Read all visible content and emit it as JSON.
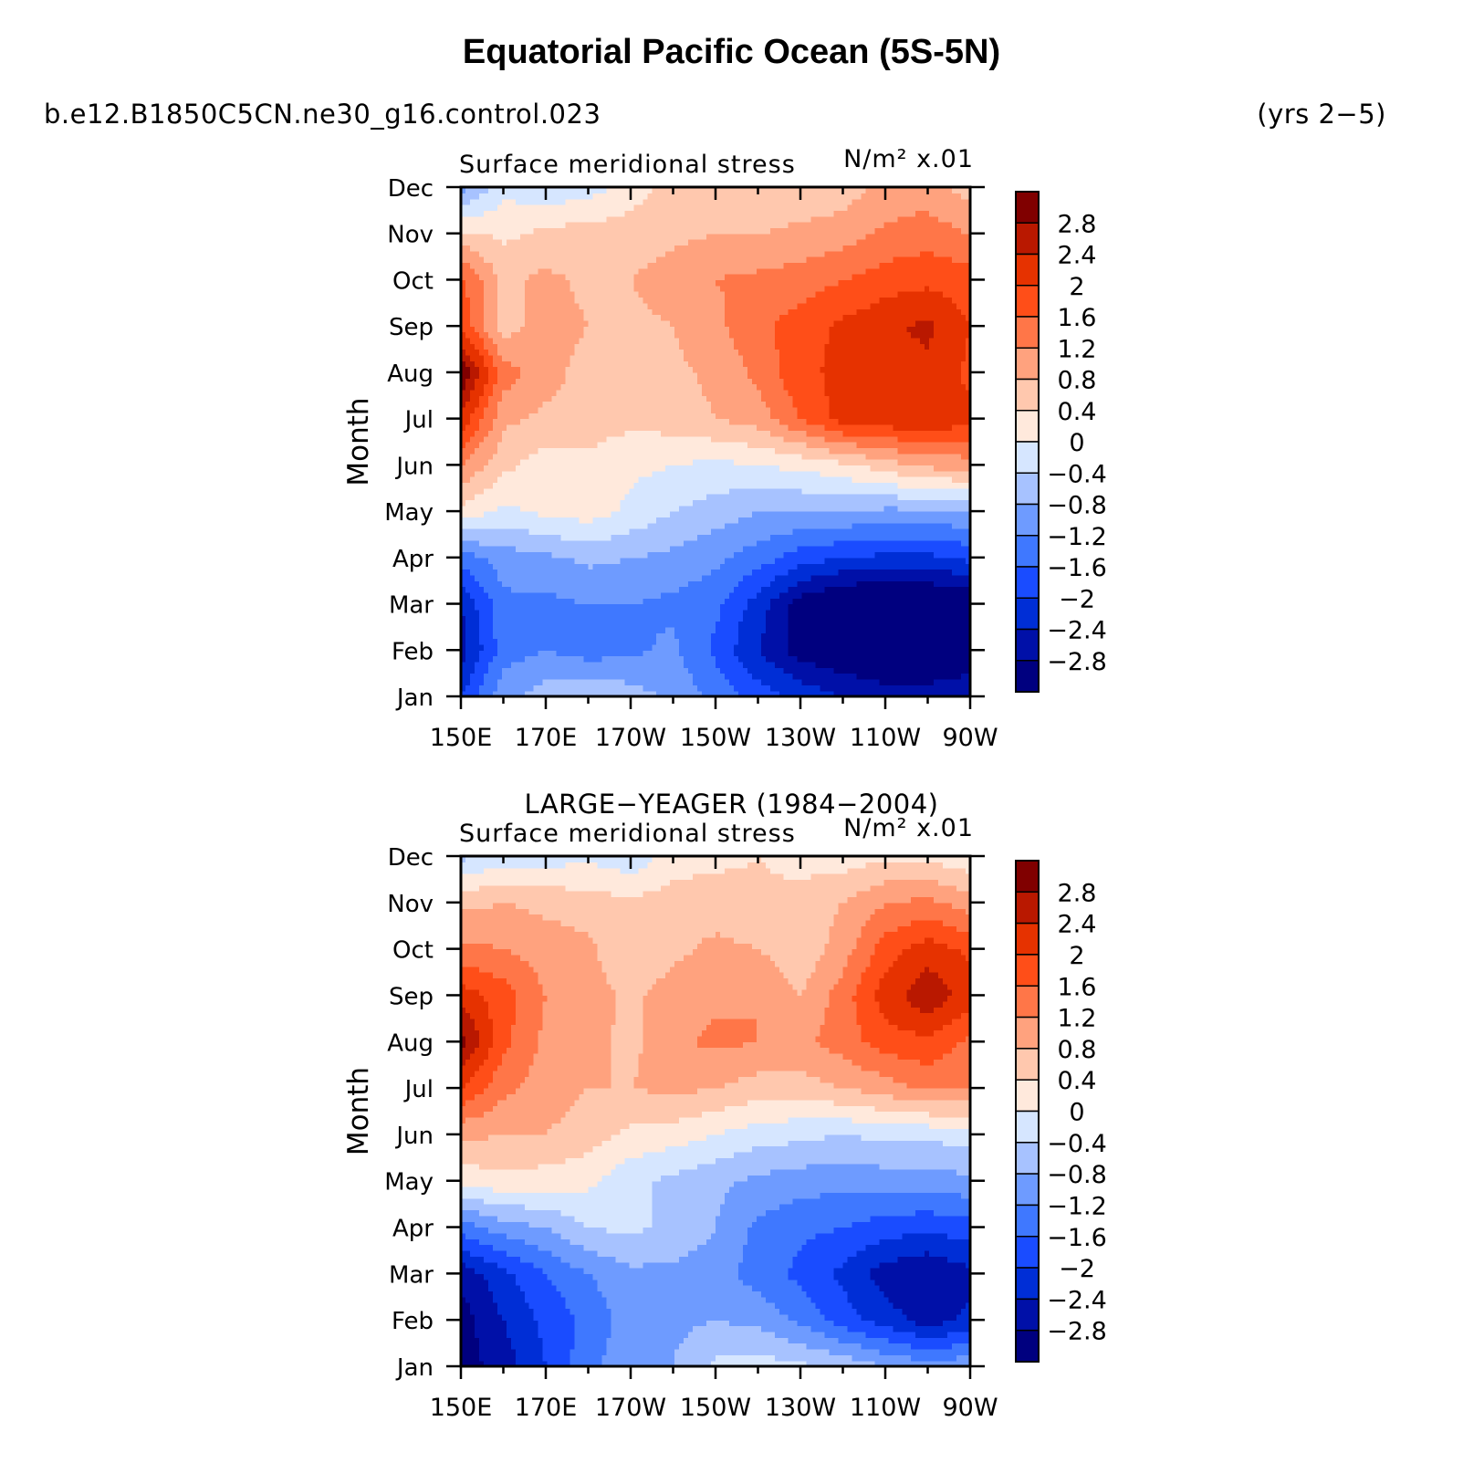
{
  "title": "Equatorial Pacific Ocean (5S-5N)",
  "case_name": "b.e12.B1850C5CN.ne30_g16.control.023",
  "years": "(yrs 2−5)",
  "obs_title": "LARGE−YEAGER (1984−2004)",
  "colors": [
    "#00007f",
    "#0010a8",
    "#002ed6",
    "#1a4cff",
    "#3f78ff",
    "#6e9bff",
    "#a7c2ff",
    "#d6e6ff",
    "#ffe9dc",
    "#ffc8ae",
    "#ffa27e",
    "#ff7648",
    "#ff4e18",
    "#e63200",
    "#b91800",
    "#800000"
  ],
  "chart_data": [
    {
      "type": "heatmap",
      "left_title": "Surface meridional stress",
      "units": "N/m² x.01",
      "ylabel": "Month",
      "x": [
        150,
        160,
        170,
        180,
        190,
        200,
        210,
        220,
        230,
        240,
        250,
        260,
        270
      ],
      "x_ticks": [
        150,
        170,
        190,
        210,
        230,
        250,
        270
      ],
      "x_tick_labels": [
        "150E",
        "170E",
        "170W",
        "150W",
        "130W",
        "110W",
        "90W"
      ],
      "y_tick_labels": [
        "Jan",
        "Feb",
        "Mar",
        "Apr",
        "May",
        "Jun",
        "Jul",
        "Aug",
        "Sep",
        "Oct",
        "Nov",
        "Dec"
      ],
      "xlim": [
        150,
        270
      ],
      "contour_levels": [
        -2.8,
        -2.4,
        -2,
        -1.6,
        -1.2,
        -0.8,
        -0.4,
        0,
        0.4,
        0.8,
        1.2,
        1.6,
        2,
        2.4,
        2.8
      ],
      "colorbar_labels": [
        "2.8",
        "2.4",
        "2",
        "1.6",
        "1.2",
        "0.8",
        "0.4",
        "0",
        "−0.4",
        "−0.8",
        "−1.2",
        "−1.6",
        "−2",
        "−2.4",
        "−2.8"
      ],
      "z": [
        [
          -2.0,
          -0.9,
          -0.6,
          -0.4,
          -0.6,
          -0.9,
          -1.3,
          -1.8,
          -2.1,
          -2.4,
          -2.6,
          -2.6,
          -2.5
        ],
        [
          -2.6,
          -1.4,
          -1.2,
          -1.4,
          -1.3,
          -1.1,
          -1.7,
          -2.4,
          -3.0,
          -3.2,
          -3.3,
          -3.3,
          -3.1
        ],
        [
          -2.4,
          -1.3,
          -1.3,
          -1.2,
          -1.2,
          -1.3,
          -1.5,
          -2.2,
          -3.0,
          -3.4,
          -3.4,
          -3.4,
          -3.2
        ],
        [
          -1.4,
          -1.0,
          -0.9,
          -0.7,
          -0.8,
          -0.9,
          -1.1,
          -1.4,
          -1.8,
          -2.0,
          -2.1,
          -2.1,
          -1.9
        ],
        [
          0.3,
          -0.1,
          0.1,
          0.2,
          -0.1,
          -0.4,
          -0.6,
          -0.8,
          -0.8,
          -0.8,
          -0.9,
          -0.9,
          -0.8
        ],
        [
          1.2,
          0.5,
          0.2,
          0.3,
          0.1,
          0.0,
          -0.1,
          0.0,
          0.1,
          0.3,
          0.6,
          0.9,
          1.0
        ],
        [
          2.3,
          0.9,
          0.7,
          0.6,
          0.5,
          0.6,
          0.8,
          1.0,
          1.6,
          2.2,
          2.3,
          2.4,
          2.1
        ],
        [
          3.2,
          1.4,
          1.0,
          0.6,
          0.5,
          0.7,
          0.9,
          1.3,
          1.9,
          2.1,
          2.2,
          2.3,
          1.9
        ],
        [
          1.9,
          0.6,
          1.0,
          0.8,
          0.7,
          0.8,
          1.1,
          1.5,
          1.8,
          2.1,
          2.3,
          2.5,
          2.0
        ],
        [
          1.7,
          0.7,
          0.9,
          0.7,
          0.8,
          1.0,
          1.2,
          1.3,
          1.4,
          1.6,
          1.8,
          1.9,
          1.8
        ],
        [
          0.5,
          0.3,
          0.5,
          0.6,
          0.6,
          0.7,
          0.8,
          0.8,
          0.9,
          1.0,
          1.3,
          1.4,
          1.2
        ],
        [
          -1.0,
          -0.1,
          -0.3,
          -0.2,
          0.2,
          0.6,
          0.5,
          0.4,
          0.5,
          0.6,
          0.9,
          1.0,
          0.6
        ]
      ]
    },
    {
      "type": "heatmap",
      "left_title": "Surface meridional stress",
      "units": "N/m² x.01",
      "ylabel": "Month",
      "x": [
        150,
        160,
        170,
        180,
        190,
        200,
        210,
        220,
        230,
        240,
        250,
        260,
        270
      ],
      "x_ticks": [
        150,
        170,
        190,
        210,
        230,
        250,
        270
      ],
      "x_tick_labels": [
        "150E",
        "170E",
        "170W",
        "150W",
        "130W",
        "110W",
        "90W"
      ],
      "y_tick_labels": [
        "Jan",
        "Feb",
        "Mar",
        "Apr",
        "May",
        "Jun",
        "Jul",
        "Aug",
        "Sep",
        "Oct",
        "Nov",
        "Dec"
      ],
      "xlim": [
        150,
        270
      ],
      "contour_levels": [
        -2.8,
        -2.4,
        -2,
        -1.6,
        -1.2,
        -0.8,
        -0.4,
        0,
        0.4,
        0.8,
        1.2,
        1.6,
        2,
        2.4,
        2.8
      ],
      "colorbar_labels": [
        "2.8",
        "2.4",
        "2",
        "1.6",
        "1.2",
        "0.8",
        "0.4",
        "0",
        "−0.4",
        "−0.8",
        "−1.2",
        "−1.6",
        "−2",
        "−2.4",
        "−2.8"
      ],
      "z": [
        [
          -3.0,
          -2.6,
          -2.0,
          -1.3,
          -0.9,
          -0.8,
          -0.3,
          -0.2,
          -0.3,
          -0.5,
          -0.8,
          -1.0,
          -0.9
        ],
        [
          -3.0,
          -2.4,
          -1.9,
          -1.5,
          -1.0,
          -0.9,
          -0.8,
          -0.9,
          -1.3,
          -1.8,
          -2.2,
          -2.6,
          -2.3
        ],
        [
          -2.7,
          -2.1,
          -1.6,
          -1.2,
          -0.9,
          -0.9,
          -1.0,
          -1.4,
          -1.7,
          -2.1,
          -2.6,
          -2.8,
          -2.5
        ],
        [
          -1.4,
          -1.0,
          -0.8,
          -0.4,
          -0.3,
          -0.5,
          -0.8,
          -1.3,
          -1.5,
          -1.6,
          -1.8,
          -1.9,
          -1.8
        ],
        [
          0.1,
          0.3,
          0.2,
          0.1,
          -0.3,
          -0.5,
          -0.7,
          -0.9,
          -1.0,
          -1.1,
          -1.0,
          -1.0,
          -0.9
        ],
        [
          0.9,
          0.8,
          0.8,
          0.6,
          0.3,
          0.2,
          0.0,
          -0.2,
          -0.3,
          -0.4,
          -0.3,
          -0.3,
          -0.2
        ],
        [
          2.0,
          1.3,
          1.0,
          0.8,
          0.8,
          0.9,
          0.8,
          0.6,
          0.6,
          0.8,
          1.0,
          1.3,
          1.2
        ],
        [
          3.0,
          1.7,
          1.1,
          0.9,
          0.7,
          1.1,
          1.3,
          1.2,
          1.1,
          1.4,
          1.8,
          1.9,
          1.5
        ],
        [
          2.2,
          1.8,
          1.2,
          1.0,
          0.7,
          1.0,
          1.1,
          1.2,
          0.8,
          1.4,
          2.2,
          2.7,
          2.2
        ],
        [
          1.3,
          1.2,
          1.0,
          0.9,
          0.4,
          0.7,
          0.9,
          0.8,
          0.5,
          1.0,
          1.8,
          2.2,
          1.9
        ],
        [
          0.7,
          0.8,
          0.7,
          0.6,
          0.5,
          0.6,
          0.6,
          0.5,
          0.6,
          0.8,
          1.2,
          1.3,
          1.0
        ],
        [
          -0.5,
          -0.2,
          -0.2,
          -0.1,
          -0.3,
          0.2,
          0.3,
          0.4,
          0.2,
          0.2,
          0.3,
          0.3,
          0.1
        ]
      ]
    }
  ]
}
